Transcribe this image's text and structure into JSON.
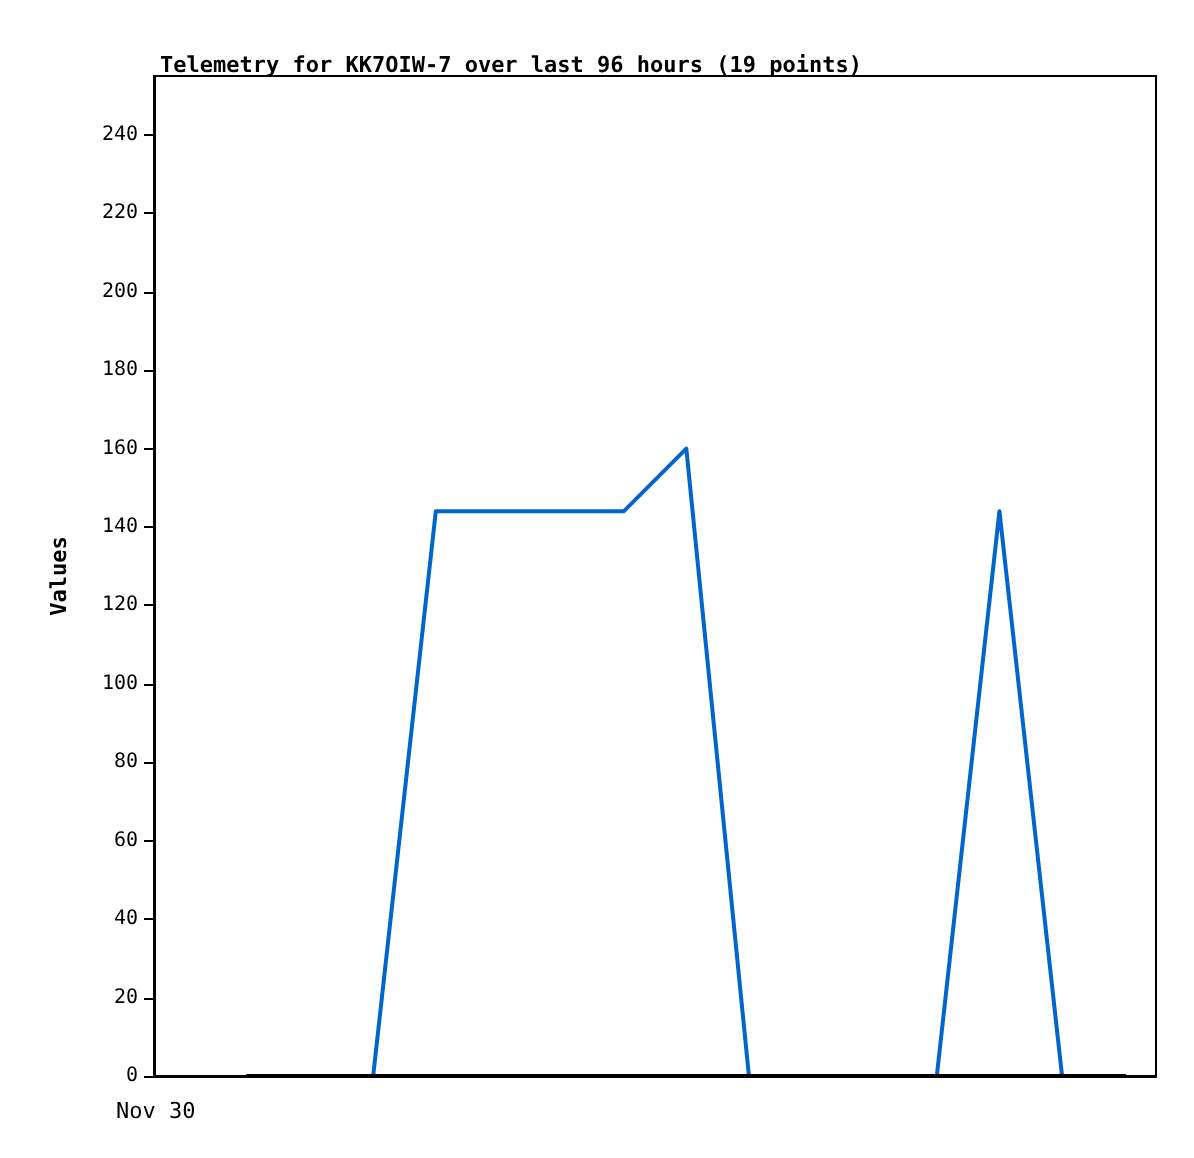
{
  "chart_data": {
    "type": "line",
    "title": "Telemetry for KK7OIW-7 over last 96 hours (19 points)",
    "ylabel": "Values",
    "annotations": [
      "Nov 30"
    ],
    "categories": [
      null,
      null,
      null,
      null,
      null,
      null,
      null,
      null,
      null,
      null,
      null,
      null,
      null,
      null,
      null,
      null
    ],
    "series": [
      {
        "color": "#0066cc",
        "values": [
          null,
          0,
          0,
          0,
          144,
          144,
          144,
          144,
          160,
          0,
          0,
          0,
          0,
          144,
          0,
          0
        ]
      },
      {
        "color": "#000000",
        "values": [
          null,
          0,
          0,
          0,
          0,
          0,
          0,
          0,
          0,
          0,
          0,
          0,
          0,
          0,
          0,
          0
        ]
      }
    ],
    "ylim": [
      0,
      255
    ],
    "yticks": [
      0,
      20,
      40,
      60,
      80,
      100,
      120,
      140,
      160,
      180,
      200,
      220,
      240
    ],
    "grid": false,
    "marker": "none",
    "line_style": "solid"
  }
}
